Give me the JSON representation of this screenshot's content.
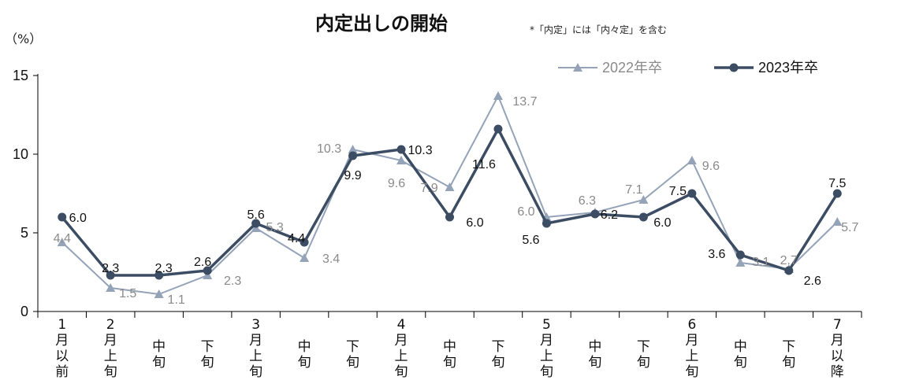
{
  "chart_data": {
    "type": "line",
    "title": "内定出しの開始",
    "subtitle": "*「内定」には「内々定」を含む",
    "ylabel": "（%）",
    "ylim": [
      0,
      15
    ],
    "yticks": [
      "0",
      "5",
      "10",
      "15"
    ],
    "categories": [
      [
        "1",
        "月",
        "以",
        "前"
      ],
      [
        "2",
        "月",
        "上",
        "旬"
      ],
      [
        "中",
        "旬"
      ],
      [
        "下",
        "旬"
      ],
      [
        "3",
        "月",
        "上",
        "旬"
      ],
      [
        "中",
        "旬"
      ],
      [
        "下",
        "旬"
      ],
      [
        "4",
        "月",
        "上",
        "旬"
      ],
      [
        "中",
        "旬"
      ],
      [
        "下",
        "旬"
      ],
      [
        "5",
        "月",
        "上",
        "旬"
      ],
      [
        "中",
        "旬"
      ],
      [
        "下",
        "旬"
      ],
      [
        "6",
        "月",
        "上",
        "旬"
      ],
      [
        "中",
        "旬"
      ],
      [
        "下",
        "旬"
      ],
      [
        "7",
        "月",
        "以",
        "降"
      ]
    ],
    "series": [
      {
        "name": "2022年卒",
        "color": "#94a3b8",
        "marker": "triangle",
        "values": [
          4.4,
          1.5,
          1.1,
          2.3,
          5.3,
          3.4,
          10.3,
          9.6,
          7.9,
          13.7,
          6.0,
          6.3,
          7.1,
          9.6,
          3.1,
          2.7,
          5.7
        ],
        "labels": [
          "4.4",
          "1.5",
          "1.1",
          "2.3",
          "5.3",
          "3.4",
          "10.3",
          "9.6",
          "7.9",
          "13.7",
          "6.0",
          "6.3",
          "7.1",
          "9.6",
          "3.1",
          "2.7",
          "5.7"
        ]
      },
      {
        "name": "2023年卒",
        "color": "#3b4c63",
        "marker": "circle",
        "values": [
          6.0,
          2.3,
          2.3,
          2.6,
          5.6,
          4.4,
          9.9,
          10.3,
          6.0,
          11.6,
          5.6,
          6.2,
          6.0,
          7.5,
          3.6,
          2.6,
          7.5
        ],
        "labels": [
          "6.0",
          "2.3",
          "2.3",
          "2.6",
          "5.6",
          "4.4",
          "9.9",
          "10.3",
          "6.0",
          "11.6",
          "5.6",
          "6.2",
          "6.0",
          "7.5",
          "3.6",
          "2.6",
          "7.5"
        ]
      }
    ],
    "legend": "top-right",
    "grid": false
  }
}
